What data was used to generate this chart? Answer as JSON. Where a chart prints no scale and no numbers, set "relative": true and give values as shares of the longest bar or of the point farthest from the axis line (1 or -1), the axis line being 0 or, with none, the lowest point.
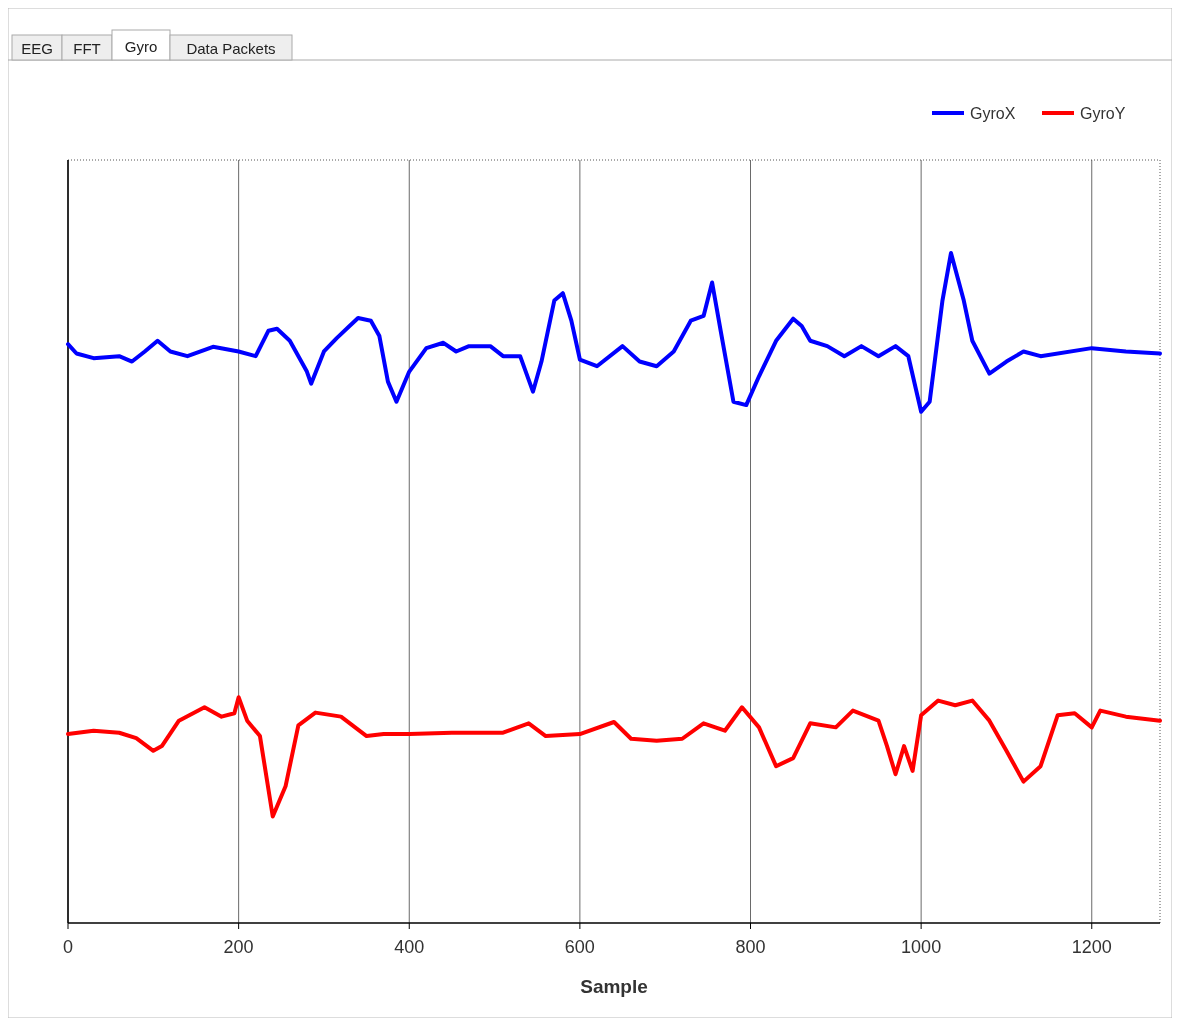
{
  "chart_data": {
    "type": "line",
    "xlabel": "Sample",
    "relative": true,
    "xlim": [
      0,
      1280
    ],
    "xticks": [
      0,
      200,
      400,
      600,
      800,
      1000,
      1200
    ],
    "grid": "x",
    "legend": "top right",
    "annotations": [
      "EEG",
      "FFT",
      "Gyro",
      "Data Packets"
    ],
    "series": [
      {
        "name": "GyroX",
        "color": "#0000ff",
        "x": [
          0,
          10,
          30,
          60,
          75,
          90,
          105,
          120,
          140,
          170,
          200,
          220,
          235,
          245,
          260,
          280,
          285,
          300,
          315,
          330,
          340,
          355,
          365,
          375,
          385,
          400,
          420,
          440,
          455,
          470,
          495,
          510,
          530,
          545,
          555,
          570,
          580,
          590,
          600,
          620,
          650,
          670,
          690,
          710,
          730,
          745,
          755,
          765,
          780,
          795,
          810,
          830,
          850,
          860,
          870,
          890,
          910,
          930,
          950,
          970,
          985,
          1000,
          1010,
          1025,
          1035,
          1050,
          1060,
          1080,
          1100,
          1120,
          1140,
          1200,
          1240,
          1280
        ],
        "values": [
          0.864,
          0.85,
          0.843,
          0.846,
          0.838,
          0.853,
          0.869,
          0.853,
          0.846,
          0.86,
          0.853,
          0.846,
          0.884,
          0.887,
          0.869,
          0.823,
          0.805,
          0.853,
          0.873,
          0.891,
          0.903,
          0.899,
          0.876,
          0.808,
          0.778,
          0.823,
          0.858,
          0.866,
          0.853,
          0.861,
          0.861,
          0.846,
          0.846,
          0.793,
          0.838,
          0.929,
          0.94,
          0.899,
          0.841,
          0.831,
          0.861,
          0.838,
          0.831,
          0.853,
          0.899,
          0.906,
          0.956,
          0.884,
          0.778,
          0.773,
          0.816,
          0.869,
          0.902,
          0.891,
          0.869,
          0.861,
          0.846,
          0.861,
          0.846,
          0.861,
          0.846,
          0.763,
          0.778,
          0.929,
          1.0,
          0.929,
          0.869,
          0.82,
          0.838,
          0.853,
          0.846,
          0.858,
          0.853,
          0.85
        ]
      },
      {
        "name": "GyroY",
        "color": "#ff0000",
        "x": [
          0,
          30,
          60,
          80,
          100,
          110,
          130,
          160,
          180,
          195,
          200,
          210,
          225,
          240,
          255,
          270,
          290,
          320,
          350,
          370,
          400,
          450,
          510,
          540,
          560,
          600,
          640,
          660,
          690,
          720,
          745,
          770,
          790,
          810,
          830,
          850,
          870,
          900,
          920,
          950,
          960,
          970,
          980,
          990,
          1000,
          1020,
          1040,
          1060,
          1080,
          1100,
          1120,
          1140,
          1160,
          1180,
          1200,
          1210,
          1240,
          1280
        ],
        "values": [
          0.282,
          0.287,
          0.284,
          0.276,
          0.257,
          0.264,
          0.302,
          0.322,
          0.308,
          0.313,
          0.337,
          0.302,
          0.279,
          0.159,
          0.204,
          0.295,
          0.314,
          0.308,
          0.279,
          0.282,
          0.282,
          0.284,
          0.284,
          0.298,
          0.279,
          0.282,
          0.3,
          0.275,
          0.272,
          0.275,
          0.298,
          0.287,
          0.322,
          0.292,
          0.234,
          0.246,
          0.298,
          0.292,
          0.317,
          0.302,
          0.264,
          0.222,
          0.264,
          0.227,
          0.31,
          0.332,
          0.325,
          0.332,
          0.302,
          0.257,
          0.211,
          0.234,
          0.31,
          0.313,
          0.292,
          0.317,
          0.308,
          0.302
        ]
      }
    ]
  }
}
